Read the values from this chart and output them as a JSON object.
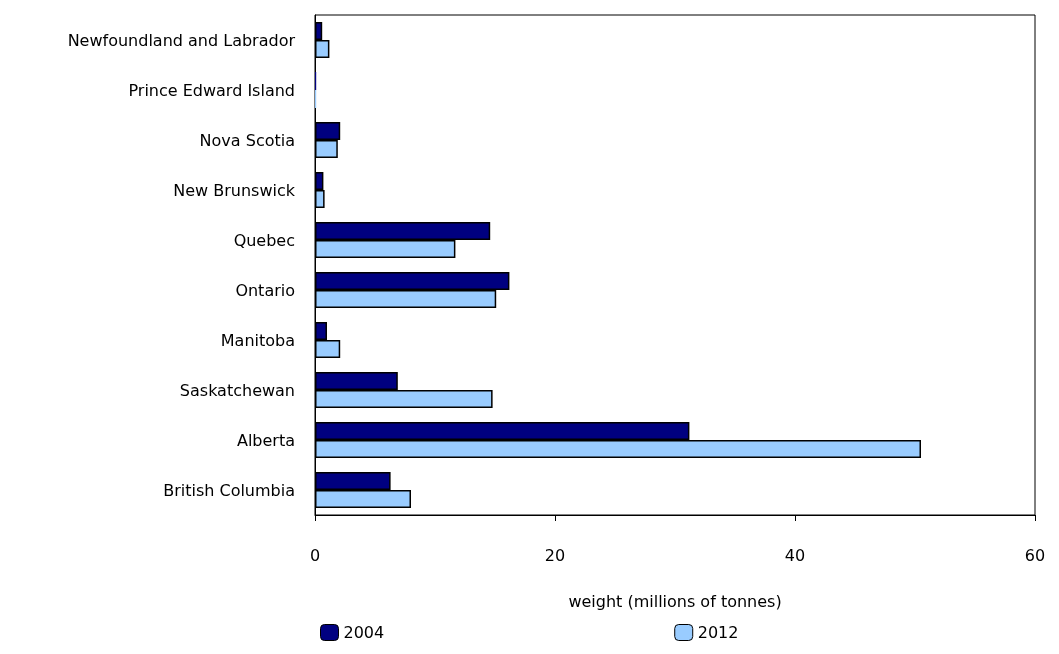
{
  "chart_data": {
    "type": "bar",
    "orientation": "horizontal",
    "xlabel": "weight (millions of tonnes)",
    "categories": [
      "Newfoundland and Labrador",
      "Prince Edward Island",
      "Nova Scotia",
      "New Brunswick",
      "Quebec",
      "Ontario",
      "Manitoba",
      "Saskatchewan",
      "Alberta",
      "British Columbia"
    ],
    "series": [
      {
        "name": "2004",
        "color": "#000080",
        "values": [
          0.6,
          0.1,
          2.1,
          0.7,
          14.6,
          16.2,
          1.0,
          6.9,
          31.2,
          6.3
        ]
      },
      {
        "name": "2012",
        "color": "#99ccff",
        "values": [
          1.2,
          0.1,
          1.9,
          0.8,
          11.7,
          15.1,
          2.1,
          14.8,
          50.5,
          8.0
        ]
      }
    ],
    "xlim": [
      0,
      60
    ],
    "xticks": [
      0,
      20,
      40,
      60
    ],
    "grid": false,
    "legend": "bottom"
  }
}
